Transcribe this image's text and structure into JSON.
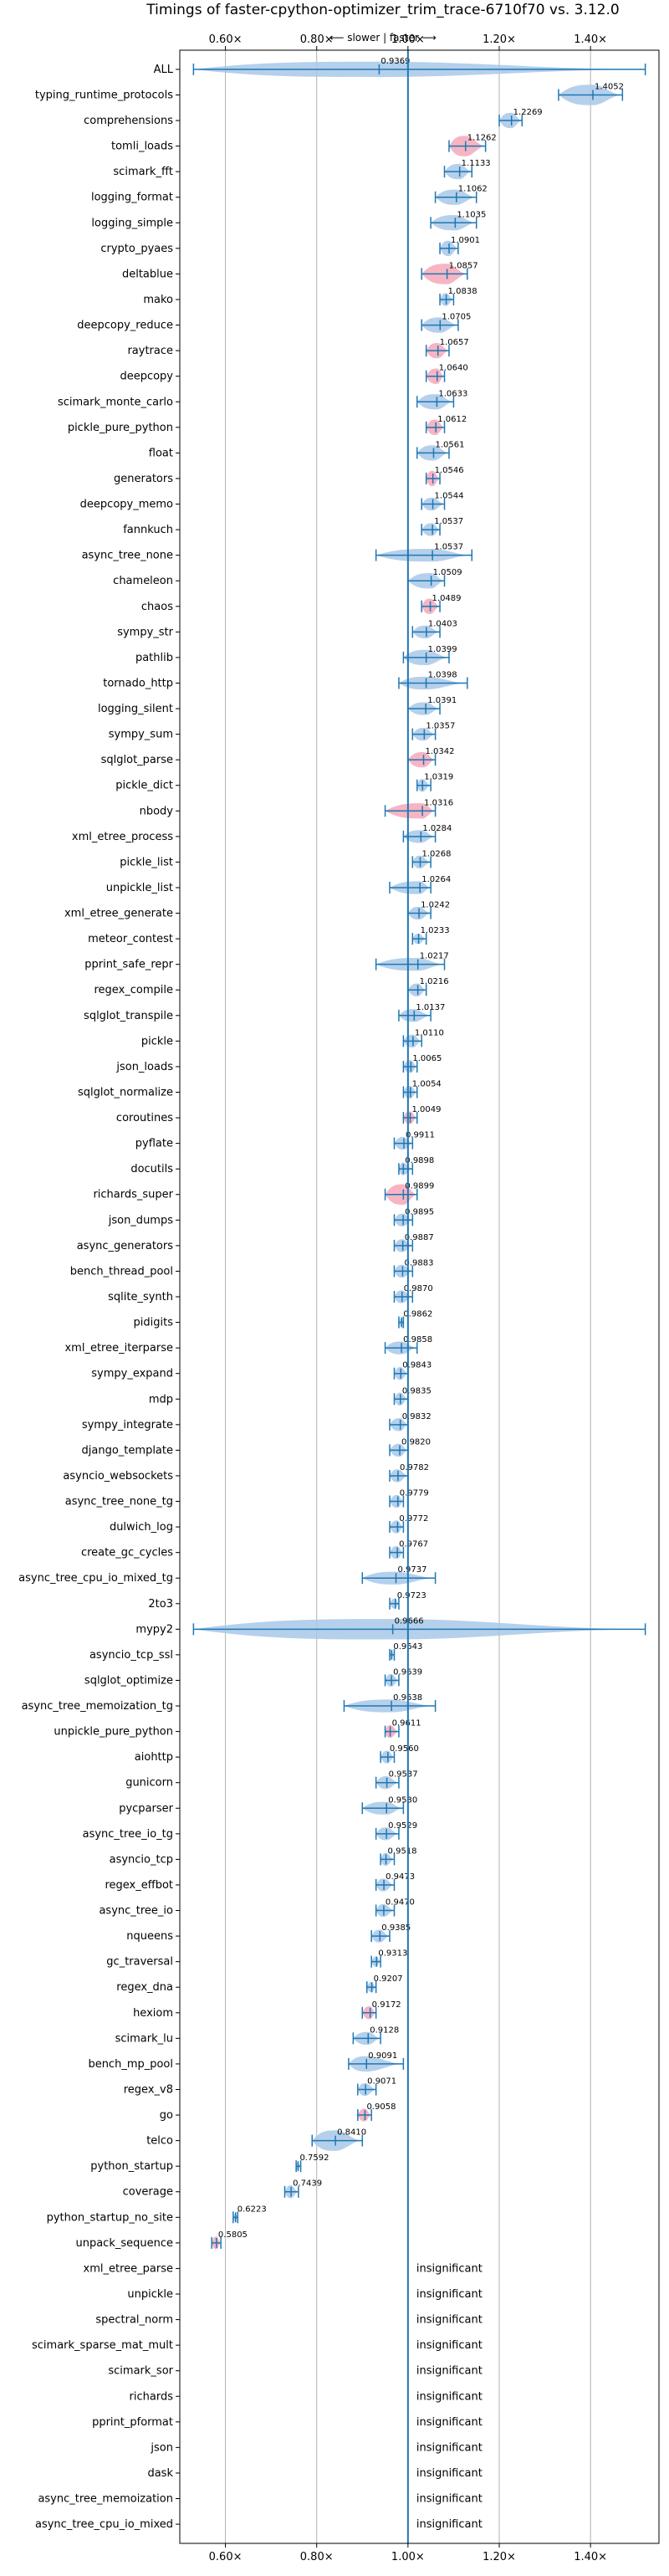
{
  "chart_data": {
    "type": "violin",
    "title": "Timings of faster-cpython-optimizer_trim_trace-6710f70 vs. 3.12.0",
    "direction_label": "⟵ slower | faster ⟶",
    "xlim": [
      0.5,
      1.55
    ],
    "xticks": [
      0.6,
      0.8,
      1.0,
      1.2,
      1.4
    ],
    "xtick_labels": [
      "0.60×",
      "0.80×",
      "1.00×",
      "1.20×",
      "1.40×"
    ],
    "reference_line": 1.0,
    "grid": true,
    "colors": {
      "blue": "#a8c8e8",
      "red": "#f4a8b8",
      "line": "#1f77b4"
    },
    "insignificant_label": "insignificant",
    "benchmarks": [
      {
        "name": "ALL",
        "value": 0.9369,
        "label": "0.9369",
        "min": 0.53,
        "max": 1.52,
        "color": "blue",
        "width": 0.6
      },
      {
        "name": "typing_runtime_protocols",
        "value": 1.4052,
        "label": "1.4052",
        "min": 1.33,
        "max": 1.47,
        "color": "blue",
        "width": 0.8
      },
      {
        "name": "comprehensions",
        "value": 1.2269,
        "label": "1.2269",
        "min": 1.2,
        "max": 1.25,
        "color": "blue",
        "width": 0.6
      },
      {
        "name": "tomli_loads",
        "value": 1.1262,
        "label": "1.1262",
        "min": 1.09,
        "max": 1.17,
        "color": "red",
        "width": 0.8
      },
      {
        "name": "scimark_fft",
        "value": 1.1133,
        "label": "1.1133",
        "min": 1.08,
        "max": 1.14,
        "color": "blue",
        "width": 0.6
      },
      {
        "name": "logging_format",
        "value": 1.1062,
        "label": "1.1062",
        "min": 1.06,
        "max": 1.15,
        "color": "blue",
        "width": 0.6
      },
      {
        "name": "logging_simple",
        "value": 1.1035,
        "label": "1.1035",
        "min": 1.05,
        "max": 1.15,
        "color": "blue",
        "width": 0.6
      },
      {
        "name": "crypto_pyaes",
        "value": 1.0901,
        "label": "1.0901",
        "min": 1.07,
        "max": 1.11,
        "color": "blue",
        "width": 0.6
      },
      {
        "name": "deltablue",
        "value": 1.0857,
        "label": "1.0857",
        "min": 1.03,
        "max": 1.13,
        "color": "red",
        "width": 0.8
      },
      {
        "name": "mako",
        "value": 1.0838,
        "label": "1.0838",
        "min": 1.07,
        "max": 1.1,
        "color": "blue",
        "width": 0.5
      },
      {
        "name": "deepcopy_reduce",
        "value": 1.0705,
        "label": "1.0705",
        "min": 1.03,
        "max": 1.11,
        "color": "blue",
        "width": 0.6
      },
      {
        "name": "raytrace",
        "value": 1.0657,
        "label": "1.0657",
        "min": 1.04,
        "max": 1.09,
        "color": "red",
        "width": 0.6
      },
      {
        "name": "deepcopy",
        "value": 1.064,
        "label": "1.0640",
        "min": 1.04,
        "max": 1.08,
        "color": "red",
        "width": 0.6
      },
      {
        "name": "scimark_monte_carlo",
        "value": 1.0633,
        "label": "1.0633",
        "min": 1.02,
        "max": 1.1,
        "color": "blue",
        "width": 0.6
      },
      {
        "name": "pickle_pure_python",
        "value": 1.0612,
        "label": "1.0612",
        "min": 1.04,
        "max": 1.08,
        "color": "red",
        "width": 0.6
      },
      {
        "name": "float",
        "value": 1.0561,
        "label": "1.0561",
        "min": 1.02,
        "max": 1.09,
        "color": "blue",
        "width": 0.6
      },
      {
        "name": "generators",
        "value": 1.0546,
        "label": "1.0546",
        "min": 1.04,
        "max": 1.07,
        "color": "red",
        "width": 0.6
      },
      {
        "name": "deepcopy_memo",
        "value": 1.0544,
        "label": "1.0544",
        "min": 1.03,
        "max": 1.08,
        "color": "blue",
        "width": 0.5
      },
      {
        "name": "fannkuch",
        "value": 1.0537,
        "label": "1.0537",
        "min": 1.03,
        "max": 1.07,
        "color": "blue",
        "width": 0.5
      },
      {
        "name": "async_tree_none",
        "value": 1.0537,
        "label": "1.0537",
        "min": 0.93,
        "max": 1.14,
        "color": "blue",
        "width": 0.5
      },
      {
        "name": "chameleon",
        "value": 1.0509,
        "label": "1.0509",
        "min": 1.0,
        "max": 1.08,
        "color": "blue",
        "width": 0.6
      },
      {
        "name": "chaos",
        "value": 1.0489,
        "label": "1.0489",
        "min": 1.03,
        "max": 1.07,
        "color": "red",
        "width": 0.6
      },
      {
        "name": "sympy_str",
        "value": 1.0403,
        "label": "1.0403",
        "min": 1.01,
        "max": 1.07,
        "color": "blue",
        "width": 0.5
      },
      {
        "name": "pathlib",
        "value": 1.0399,
        "label": "1.0399",
        "min": 0.99,
        "max": 1.09,
        "color": "blue",
        "width": 0.6
      },
      {
        "name": "tornado_http",
        "value": 1.0398,
        "label": "1.0398",
        "min": 0.98,
        "max": 1.13,
        "color": "blue",
        "width": 0.5
      },
      {
        "name": "logging_silent",
        "value": 1.0391,
        "label": "1.0391",
        "min": 1.0,
        "max": 1.07,
        "color": "blue",
        "width": 0.5
      },
      {
        "name": "sympy_sum",
        "value": 1.0357,
        "label": "1.0357",
        "min": 1.01,
        "max": 1.06,
        "color": "blue",
        "width": 0.5
      },
      {
        "name": "sqlglot_parse",
        "value": 1.0342,
        "label": "1.0342",
        "min": 1.0,
        "max": 1.06,
        "color": "red",
        "width": 0.6
      },
      {
        "name": "pickle_dict",
        "value": 1.0319,
        "label": "1.0319",
        "min": 1.02,
        "max": 1.05,
        "color": "blue",
        "width": 0.5
      },
      {
        "name": "nbody",
        "value": 1.0316,
        "label": "1.0316",
        "min": 0.95,
        "max": 1.06,
        "color": "red",
        "width": 0.6
      },
      {
        "name": "xml_etree_process",
        "value": 1.0284,
        "label": "1.0284",
        "min": 0.99,
        "max": 1.06,
        "color": "blue",
        "width": 0.5
      },
      {
        "name": "pickle_list",
        "value": 1.0268,
        "label": "1.0268",
        "min": 1.01,
        "max": 1.05,
        "color": "blue",
        "width": 0.5
      },
      {
        "name": "unpickle_list",
        "value": 1.0264,
        "label": "1.0264",
        "min": 0.96,
        "max": 1.05,
        "color": "blue",
        "width": 0.5
      },
      {
        "name": "xml_etree_generate",
        "value": 1.0242,
        "label": "1.0242",
        "min": 1.0,
        "max": 1.05,
        "color": "blue",
        "width": 0.5
      },
      {
        "name": "meteor_contest",
        "value": 1.0233,
        "label": "1.0233",
        "min": 1.01,
        "max": 1.04,
        "color": "blue",
        "width": 0.4
      },
      {
        "name": "pprint_safe_repr",
        "value": 1.0217,
        "label": "1.0217",
        "min": 0.93,
        "max": 1.08,
        "color": "blue",
        "width": 0.5
      },
      {
        "name": "regex_compile",
        "value": 1.0216,
        "label": "1.0216",
        "min": 1.0,
        "max": 1.04,
        "color": "blue",
        "width": 0.5
      },
      {
        "name": "sqlglot_transpile",
        "value": 1.0137,
        "label": "1.0137",
        "min": 0.98,
        "max": 1.05,
        "color": "blue",
        "width": 0.5
      },
      {
        "name": "pickle",
        "value": 1.011,
        "label": "1.0110",
        "min": 0.99,
        "max": 1.03,
        "color": "blue",
        "width": 0.5
      },
      {
        "name": "json_loads",
        "value": 1.0065,
        "label": "1.0065",
        "min": 0.99,
        "max": 1.02,
        "color": "blue",
        "width": 0.5
      },
      {
        "name": "sqlglot_normalize",
        "value": 1.0054,
        "label": "1.0054",
        "min": 0.99,
        "max": 1.02,
        "color": "blue",
        "width": 0.5
      },
      {
        "name": "coroutines",
        "value": 1.0049,
        "label": "1.0049",
        "min": 0.99,
        "max": 1.02,
        "color": "red",
        "width": 0.5
      },
      {
        "name": "pyflate",
        "value": 0.9911,
        "label": "0.9911",
        "min": 0.97,
        "max": 1.01,
        "color": "blue",
        "width": 0.5
      },
      {
        "name": "docutils",
        "value": 0.9898,
        "label": "0.9898",
        "min": 0.98,
        "max": 1.01,
        "color": "blue",
        "width": 0.5
      },
      {
        "name": "richards_super",
        "value": 0.9899,
        "label": "0.9899",
        "min": 0.95,
        "max": 1.02,
        "color": "red",
        "width": 0.8
      },
      {
        "name": "json_dumps",
        "value": 0.9895,
        "label": "0.9895",
        "min": 0.97,
        "max": 1.01,
        "color": "blue",
        "width": 0.5
      },
      {
        "name": "async_generators",
        "value": 0.9887,
        "label": "0.9887",
        "min": 0.97,
        "max": 1.01,
        "color": "blue",
        "width": 0.5
      },
      {
        "name": "bench_thread_pool",
        "value": 0.9883,
        "label": "0.9883",
        "min": 0.97,
        "max": 1.01,
        "color": "blue",
        "width": 0.5
      },
      {
        "name": "sqlite_synth",
        "value": 0.987,
        "label": "0.9870",
        "min": 0.97,
        "max": 1.01,
        "color": "blue",
        "width": 0.5
      },
      {
        "name": "pidigits",
        "value": 0.9862,
        "label": "0.9862",
        "min": 0.98,
        "max": 0.99,
        "color": "blue",
        "width": 0.3
      },
      {
        "name": "xml_etree_iterparse",
        "value": 0.9858,
        "label": "0.9858",
        "min": 0.95,
        "max": 1.02,
        "color": "blue",
        "width": 0.5
      },
      {
        "name": "sympy_expand",
        "value": 0.9843,
        "label": "0.9843",
        "min": 0.97,
        "max": 1.0,
        "color": "blue",
        "width": 0.5
      },
      {
        "name": "mdp",
        "value": 0.9835,
        "label": "0.9835",
        "min": 0.97,
        "max": 1.0,
        "color": "blue",
        "width": 0.5
      },
      {
        "name": "sympy_integrate",
        "value": 0.9832,
        "label": "0.9832",
        "min": 0.96,
        "max": 1.0,
        "color": "blue",
        "width": 0.5
      },
      {
        "name": "django_template",
        "value": 0.982,
        "label": "0.9820",
        "min": 0.96,
        "max": 1.0,
        "color": "blue",
        "width": 0.5
      },
      {
        "name": "asyncio_websockets",
        "value": 0.9782,
        "label": "0.9782",
        "min": 0.96,
        "max": 1.0,
        "color": "blue",
        "width": 0.5
      },
      {
        "name": "async_tree_none_tg",
        "value": 0.9779,
        "label": "0.9779",
        "min": 0.96,
        "max": 0.99,
        "color": "blue",
        "width": 0.5
      },
      {
        "name": "dulwich_log",
        "value": 0.9772,
        "label": "0.9772",
        "min": 0.96,
        "max": 0.99,
        "color": "blue",
        "width": 0.5
      },
      {
        "name": "create_gc_cycles",
        "value": 0.9767,
        "label": "0.9767",
        "min": 0.96,
        "max": 0.99,
        "color": "blue",
        "width": 0.5
      },
      {
        "name": "async_tree_cpu_io_mixed_tg",
        "value": 0.9737,
        "label": "0.9737",
        "min": 0.9,
        "max": 1.06,
        "color": "blue",
        "width": 0.5
      },
      {
        "name": "2to3",
        "value": 0.9723,
        "label": "0.9723",
        "min": 0.96,
        "max": 0.98,
        "color": "blue",
        "width": 0.4
      },
      {
        "name": "mypy2",
        "value": 0.9666,
        "label": "0.9666",
        "min": 0.53,
        "max": 1.52,
        "color": "blue",
        "width": 0.8
      },
      {
        "name": "asyncio_tcp_ssl",
        "value": 0.9643,
        "label": "0.9643",
        "min": 0.96,
        "max": 0.97,
        "color": "blue",
        "width": 0.3
      },
      {
        "name": "sqlglot_optimize",
        "value": 0.9639,
        "label": "0.9639",
        "min": 0.95,
        "max": 0.98,
        "color": "blue",
        "width": 0.5
      },
      {
        "name": "async_tree_memoization_tg",
        "value": 0.9638,
        "label": "0.9638",
        "min": 0.86,
        "max": 1.06,
        "color": "blue",
        "width": 0.5
      },
      {
        "name": "unpickle_pure_python",
        "value": 0.9611,
        "label": "0.9611",
        "min": 0.95,
        "max": 0.98,
        "color": "red",
        "width": 0.5
      },
      {
        "name": "aiohttp",
        "value": 0.956,
        "label": "0.9560",
        "min": 0.94,
        "max": 0.97,
        "color": "blue",
        "width": 0.5
      },
      {
        "name": "gunicorn",
        "value": 0.9537,
        "label": "0.9537",
        "min": 0.93,
        "max": 0.98,
        "color": "blue",
        "width": 0.5
      },
      {
        "name": "pycparser",
        "value": 0.953,
        "label": "0.9530",
        "min": 0.9,
        "max": 0.99,
        "color": "blue",
        "width": 0.5
      },
      {
        "name": "async_tree_io_tg",
        "value": 0.9529,
        "label": "0.9529",
        "min": 0.93,
        "max": 0.98,
        "color": "blue",
        "width": 0.5
      },
      {
        "name": "asyncio_tcp",
        "value": 0.9518,
        "label": "0.9518",
        "min": 0.94,
        "max": 0.97,
        "color": "blue",
        "width": 0.5
      },
      {
        "name": "regex_effbot",
        "value": 0.9473,
        "label": "0.9473",
        "min": 0.93,
        "max": 0.97,
        "color": "blue",
        "width": 0.5
      },
      {
        "name": "async_tree_io",
        "value": 0.947,
        "label": "0.9470",
        "min": 0.93,
        "max": 0.97,
        "color": "blue",
        "width": 0.5
      },
      {
        "name": "nqueens",
        "value": 0.9385,
        "label": "0.9385",
        "min": 0.92,
        "max": 0.96,
        "color": "blue",
        "width": 0.5
      },
      {
        "name": "gc_traversal",
        "value": 0.9313,
        "label": "0.9313",
        "min": 0.92,
        "max": 0.94,
        "color": "blue",
        "width": 0.4
      },
      {
        "name": "regex_dna",
        "value": 0.9207,
        "label": "0.9207",
        "min": 0.91,
        "max": 0.93,
        "color": "blue",
        "width": 0.4
      },
      {
        "name": "hexiom",
        "value": 0.9172,
        "label": "0.9172",
        "min": 0.9,
        "max": 0.93,
        "color": "red",
        "width": 0.5
      },
      {
        "name": "scimark_lu",
        "value": 0.9128,
        "label": "0.9128",
        "min": 0.88,
        "max": 0.94,
        "color": "blue",
        "width": 0.5
      },
      {
        "name": "bench_mp_pool",
        "value": 0.9091,
        "label": "0.9091",
        "min": 0.87,
        "max": 0.99,
        "color": "blue",
        "width": 0.6
      },
      {
        "name": "regex_v8",
        "value": 0.9071,
        "label": "0.9071",
        "min": 0.89,
        "max": 0.93,
        "color": "blue",
        "width": 0.5
      },
      {
        "name": "go",
        "value": 0.9058,
        "label": "0.9058",
        "min": 0.89,
        "max": 0.92,
        "color": "red",
        "width": 0.5
      },
      {
        "name": "telco",
        "value": 0.841,
        "label": "0.8410",
        "min": 0.79,
        "max": 0.9,
        "color": "blue",
        "width": 0.8
      },
      {
        "name": "python_startup",
        "value": 0.7592,
        "label": "0.7592",
        "min": 0.755,
        "max": 0.765,
        "color": "blue",
        "width": 0.3
      },
      {
        "name": "coverage",
        "value": 0.7439,
        "label": "0.7439",
        "min": 0.73,
        "max": 0.76,
        "color": "blue",
        "width": 0.5
      },
      {
        "name": "python_startup_no_site",
        "value": 0.6223,
        "label": "0.6223",
        "min": 0.617,
        "max": 0.627,
        "color": "blue",
        "width": 0.3
      },
      {
        "name": "unpack_sequence",
        "value": 0.5805,
        "label": "0.5805",
        "min": 0.57,
        "max": 0.59,
        "color": "red",
        "width": 0.5
      },
      {
        "name": "xml_etree_parse",
        "insignificant": true
      },
      {
        "name": "unpickle",
        "insignificant": true
      },
      {
        "name": "spectral_norm",
        "insignificant": true
      },
      {
        "name": "scimark_sparse_mat_mult",
        "insignificant": true
      },
      {
        "name": "scimark_sor",
        "insignificant": true
      },
      {
        "name": "richards",
        "insignificant": true
      },
      {
        "name": "pprint_pformat",
        "insignificant": true
      },
      {
        "name": "json",
        "insignificant": true
      },
      {
        "name": "dask",
        "insignificant": true
      },
      {
        "name": "async_tree_memoization",
        "insignificant": true
      },
      {
        "name": "async_tree_cpu_io_mixed",
        "insignificant": true
      }
    ]
  }
}
